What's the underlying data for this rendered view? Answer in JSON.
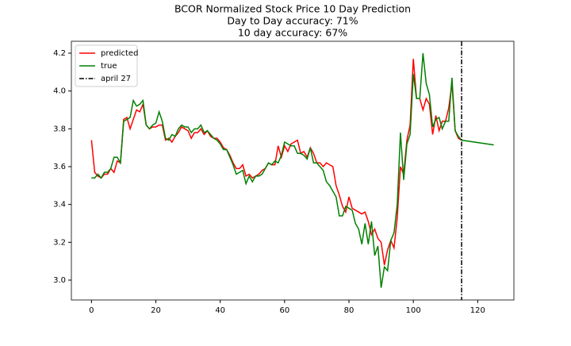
{
  "chart_data": {
    "type": "line",
    "title": [
      "BCOR Normalized Stock Price 10 Day Prediction",
      "Day to Day accuracy: 71%",
      "10 day accuracy: 67%"
    ],
    "x": [
      0,
      1,
      2,
      3,
      4,
      5,
      6,
      7,
      8,
      9,
      10,
      11,
      12,
      13,
      14,
      15,
      16,
      17,
      18,
      19,
      20,
      21,
      22,
      23,
      24,
      25,
      26,
      27,
      28,
      29,
      30,
      31,
      32,
      33,
      34,
      35,
      36,
      37,
      38,
      39,
      40,
      41,
      42,
      43,
      44,
      45,
      46,
      47,
      48,
      49,
      50,
      51,
      52,
      53,
      54,
      55,
      56,
      57,
      58,
      59,
      60,
      61,
      62,
      63,
      64,
      65,
      66,
      67,
      68,
      69,
      70,
      71,
      72,
      73,
      74,
      75,
      76,
      77,
      78,
      79,
      80,
      81,
      82,
      83,
      84,
      85,
      86,
      87,
      88,
      89,
      90,
      91,
      92,
      93,
      94,
      95,
      96,
      97,
      98,
      99,
      100,
      101,
      102,
      103,
      104,
      105,
      106,
      107,
      108,
      109,
      110,
      111,
      112,
      113,
      114,
      115,
      125
    ],
    "series": [
      {
        "name": "predicted",
        "color": "#ff0000",
        "values": [
          3.74,
          3.57,
          3.55,
          3.54,
          3.56,
          3.56,
          3.59,
          3.57,
          3.63,
          3.62,
          3.85,
          3.86,
          3.8,
          3.85,
          3.9,
          3.89,
          3.93,
          3.82,
          3.8,
          3.81,
          3.81,
          3.82,
          3.82,
          3.74,
          3.75,
          3.73,
          3.76,
          3.78,
          3.81,
          3.8,
          3.79,
          3.75,
          3.78,
          3.78,
          3.8,
          3.77,
          3.79,
          3.76,
          3.75,
          3.75,
          3.73,
          3.7,
          3.69,
          3.66,
          3.62,
          3.59,
          3.59,
          3.61,
          3.55,
          3.56,
          3.54,
          3.55,
          3.56,
          3.58,
          3.59,
          3.62,
          3.61,
          3.61,
          3.71,
          3.65,
          3.71,
          3.68,
          3.72,
          3.73,
          3.74,
          3.67,
          3.68,
          3.65,
          3.7,
          3.67,
          3.62,
          3.62,
          3.6,
          3.62,
          3.61,
          3.6,
          3.5,
          3.45,
          3.39,
          3.36,
          3.44,
          3.38,
          3.37,
          3.36,
          3.35,
          3.36,
          3.31,
          3.24,
          3.27,
          3.22,
          3.2,
          3.08,
          3.16,
          3.21,
          3.17,
          3.33,
          3.6,
          3.56,
          3.74,
          3.82,
          4.17,
          3.96,
          3.96,
          3.9,
          3.96,
          3.93,
          3.77,
          3.87,
          3.79,
          3.84,
          3.84,
          3.91,
          4.04,
          3.79,
          3.75,
          3.74,
          null
        ]
      },
      {
        "name": "true",
        "color": "#008000",
        "values": [
          3.54,
          3.54,
          3.56,
          3.54,
          3.57,
          3.57,
          3.59,
          3.65,
          3.65,
          3.62,
          3.84,
          3.85,
          3.86,
          3.95,
          3.92,
          3.93,
          3.95,
          3.82,
          3.8,
          3.82,
          3.83,
          3.89,
          3.84,
          3.75,
          3.74,
          3.77,
          3.76,
          3.8,
          3.82,
          3.81,
          3.81,
          3.78,
          3.8,
          3.8,
          3.82,
          3.78,
          3.79,
          3.77,
          3.75,
          3.74,
          3.72,
          3.69,
          3.69,
          3.65,
          3.61,
          3.56,
          3.57,
          3.58,
          3.51,
          3.55,
          3.52,
          3.55,
          3.55,
          3.56,
          3.59,
          3.62,
          3.61,
          3.63,
          3.62,
          3.66,
          3.73,
          3.72,
          3.71,
          3.71,
          3.67,
          3.67,
          3.66,
          3.64,
          3.7,
          3.62,
          3.62,
          3.6,
          3.58,
          3.52,
          3.5,
          3.47,
          3.44,
          3.34,
          3.34,
          3.39,
          3.38,
          3.37,
          3.3,
          3.27,
          3.19,
          3.3,
          3.19,
          3.31,
          3.13,
          3.18,
          2.96,
          3.07,
          3.05,
          3.21,
          3.25,
          3.4,
          3.78,
          3.53,
          3.72,
          3.77,
          4.09,
          3.96,
          3.96,
          4.2,
          4.04,
          3.98,
          3.81,
          3.85,
          3.86,
          3.8,
          3.84,
          3.84,
          4.07,
          3.79,
          3.76,
          3.74,
          3.715
        ]
      }
    ],
    "vline": {
      "x": 115,
      "name": "april 27",
      "color": "#000000"
    },
    "xlim": [
      -6.25,
      131.25
    ],
    "ylim": [
      2.895,
      4.263
    ],
    "xticks": [
      0,
      20,
      40,
      60,
      80,
      100,
      120
    ],
    "yticks": [
      {
        "value": 3,
        "label": "3.0"
      },
      3.2,
      3.4,
      3.6,
      3.8,
      {
        "value": 4,
        "label": "4.0"
      },
      4.2
    ],
    "legend": "upper left"
  }
}
